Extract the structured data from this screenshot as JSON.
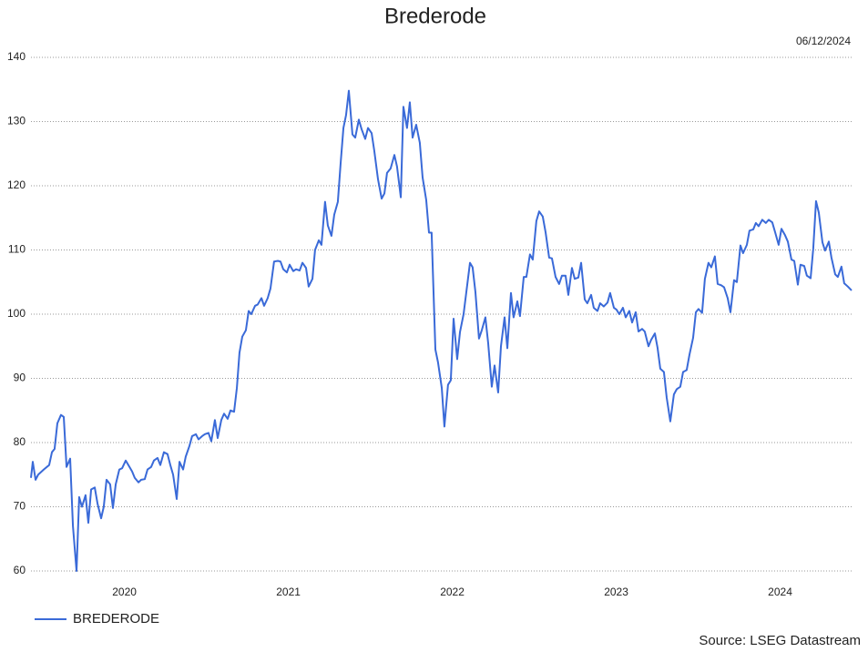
{
  "chart_data": {
    "type": "line",
    "title": "Brederode",
    "date": "06/12/2024",
    "source": "Source: LSEG Datastream",
    "x": [
      2019.43,
      2019.441,
      2019.458,
      2019.474,
      2019.508,
      2019.541,
      2019.558,
      2019.574,
      2019.591,
      2019.613,
      2019.63,
      2019.647,
      2019.669,
      2019.686,
      2019.708,
      2019.724,
      2019.741,
      2019.763,
      2019.78,
      2019.797,
      2019.819,
      2019.836,
      2019.858,
      2019.874,
      2019.891,
      2019.913,
      2019.93,
      2019.947,
      2019.969,
      2019.986,
      2020.008,
      2020.024,
      2020.047,
      2020.063,
      2020.086,
      2020.102,
      2020.124,
      2020.141,
      2020.163,
      2020.18,
      2020.202,
      2020.219,
      2020.241,
      2020.263,
      2020.28,
      2020.297,
      2020.319,
      2020.336,
      2020.358,
      2020.374,
      2020.397,
      2020.413,
      2020.436,
      2020.452,
      2020.474,
      2020.491,
      2020.513,
      2020.53,
      2020.552,
      2020.569,
      2020.591,
      2020.608,
      2020.63,
      2020.647,
      2020.669,
      2020.686,
      2020.702,
      2020.719,
      2020.741,
      2020.758,
      2020.774,
      2020.797,
      2020.813,
      2020.836,
      2020.852,
      2020.874,
      2020.891,
      2020.913,
      2020.936,
      2020.952,
      2020.969,
      2020.991,
      2021.008,
      2021.03,
      2021.047,
      2021.069,
      2021.086,
      2021.108,
      2021.124,
      2021.147,
      2021.163,
      2021.186,
      2021.202,
      2021.224,
      2021.241,
      2021.263,
      2021.28,
      2021.302,
      2021.319,
      2021.336,
      2021.352,
      2021.369,
      2021.391,
      2021.408,
      2021.43,
      2021.447,
      2021.469,
      2021.486,
      2021.508,
      2021.524,
      2021.547,
      2021.569,
      2021.586,
      2021.602,
      2021.624,
      2021.647,
      2021.663,
      2021.686,
      2021.702,
      2021.724,
      2021.741,
      2021.758,
      2021.78,
      2021.802,
      2021.819,
      2021.841,
      2021.858,
      2021.874,
      2021.897,
      2021.913,
      2021.936,
      2021.952,
      2021.974,
      2021.991,
      2022.008,
      2022.03,
      2022.047,
      2022.069,
      2022.086,
      2022.108,
      2022.124,
      2022.141,
      2022.163,
      2022.18,
      2022.202,
      2022.219,
      2022.241,
      2022.258,
      2022.28,
      2022.297,
      2022.319,
      2022.336,
      2022.358,
      2022.374,
      2022.397,
      2022.413,
      2022.436,
      2022.452,
      2022.474,
      2022.491,
      2022.513,
      2022.53,
      2022.552,
      2022.569,
      2022.591,
      2022.608,
      2022.63,
      2022.652,
      2022.669,
      2022.691,
      2022.708,
      2022.73,
      2022.747,
      2022.769,
      2022.786,
      2022.808,
      2022.824,
      2022.847,
      2022.863,
      2022.886,
      2022.902,
      2022.924,
      2022.947,
      2022.963,
      2022.986,
      2023.002,
      2023.019,
      2023.041,
      2023.058,
      2023.08,
      2023.097,
      2023.119,
      2023.136,
      2023.158,
      2023.174,
      2023.197,
      2023.213,
      2023.236,
      2023.252,
      2023.269,
      2023.291,
      2023.308,
      2023.33,
      2023.352,
      2023.369,
      2023.391,
      2023.408,
      2023.43,
      2023.447,
      2023.469,
      2023.486,
      2023.502,
      2023.524,
      2023.541,
      2023.563,
      2023.58,
      2023.602,
      2023.619,
      2023.641,
      2023.658,
      2023.68,
      2023.697,
      2023.719,
      2023.736,
      2023.758,
      2023.774,
      2023.797,
      2023.813,
      2023.836,
      2023.852,
      2023.869,
      2023.891,
      2023.913,
      2023.93,
      2023.952,
      2023.969,
      2023.991,
      2024.008,
      2024.03,
      2024.047,
      2024.069,
      2024.086,
      2024.108,
      2024.124,
      2024.147,
      2024.163,
      2024.186,
      2024.202,
      2024.219,
      2024.236,
      2024.258,
      2024.274,
      2024.297,
      2024.313,
      2024.336,
      2024.352,
      2024.374,
      2024.391,
      2024.413,
      2024.436
    ],
    "series": [
      {
        "name": "BREDERODE",
        "color": "#3a6ad8",
        "values": [
          74.5,
          77,
          74.2,
          75,
          75.8,
          76.5,
          78.5,
          79,
          83,
          84.3,
          84,
          76.2,
          77.5,
          67,
          60,
          71.5,
          70,
          71.8,
          67.5,
          72.7,
          73,
          70.5,
          68.2,
          70,
          74.2,
          73.5,
          69.8,
          73.5,
          75.8,
          76,
          77.2,
          76.5,
          75.5,
          74.5,
          73.8,
          74.2,
          74.3,
          75.8,
          76.2,
          77.2,
          77.6,
          76.5,
          78.5,
          78.2,
          76.5,
          75,
          71.2,
          77,
          75.8,
          77.8,
          79.5,
          81,
          81.3,
          80.5,
          81,
          81.3,
          81.5,
          80.2,
          83.5,
          80.7,
          83.5,
          84.5,
          83.7,
          85,
          84.8,
          88.5,
          94,
          96.5,
          97.5,
          100.5,
          100,
          101.3,
          101.5,
          102.5,
          101.3,
          102.5,
          104,
          108.2,
          108.3,
          108.2,
          107,
          106.5,
          107.7,
          106.7,
          107,
          106.8,
          108,
          107.2,
          104.3,
          105.5,
          110,
          111.5,
          110.8,
          117.5,
          113.8,
          112.2,
          115.5,
          117.5,
          123.5,
          129,
          131,
          134.8,
          128,
          127.5,
          130.3,
          128.8,
          127.3,
          129,
          128.2,
          125.5,
          121,
          118,
          118.8,
          122,
          122.7,
          124.8,
          123,
          118.2,
          132.3,
          129,
          133,
          127.5,
          129.5,
          126.7,
          121.3,
          117.8,
          112.7,
          112.7,
          94.5,
          92.5,
          88.5,
          82.5,
          89,
          89.7,
          99.3,
          93,
          97.2,
          100,
          103.5,
          108,
          107.3,
          103.5,
          96.2,
          97.5,
          99.5,
          95.5,
          88.7,
          92,
          87.8,
          95,
          99.5,
          94.7,
          103.3,
          99.5,
          102,
          99.7,
          105.8,
          105.8,
          109.3,
          108.5,
          114.5,
          116,
          115.2,
          112.8,
          108.8,
          108.7,
          105.8,
          104.7,
          106,
          106,
          103,
          107.2,
          105.5,
          105.7,
          108,
          102.3,
          101.7,
          103,
          101,
          100.5,
          101.7,
          101.2,
          101.8,
          103.3,
          101,
          100.7,
          100,
          101,
          99.5,
          100.5,
          98.7,
          100.3,
          97.3,
          97.7,
          97.3,
          95,
          96,
          97,
          94.8,
          91.5,
          91,
          87,
          83.3,
          87.5,
          88.3,
          88.7,
          91,
          91.3,
          93.7,
          96.3,
          100.3,
          100.8,
          100.2,
          105.5,
          108,
          107.3,
          109,
          104.7,
          104.5,
          104.2,
          102.5,
          100.3,
          105.3,
          105,
          110.7,
          109.5,
          110.8,
          113,
          113.2,
          114.2,
          113.7,
          114.7,
          114.2,
          114.7,
          114.3,
          112.8,
          110.8,
          113.3,
          112.3,
          111.3,
          108.5,
          108.3,
          104.6,
          107.7,
          107.5,
          106,
          105.6,
          110.2,
          117.6,
          115.8,
          111.2,
          109.9,
          111.3,
          108.8,
          106.2,
          105.8,
          107.4,
          104.8,
          104.3,
          103.7
        ]
      }
    ],
    "xlim": [
      2019.43,
      2024.436
    ],
    "xticks": [
      2020,
      2021,
      2022,
      2023,
      2024
    ],
    "ylim": [
      60,
      140
    ],
    "yticks": [
      60,
      70,
      80,
      90,
      100,
      110,
      120,
      130,
      140
    ],
    "grid": true
  }
}
